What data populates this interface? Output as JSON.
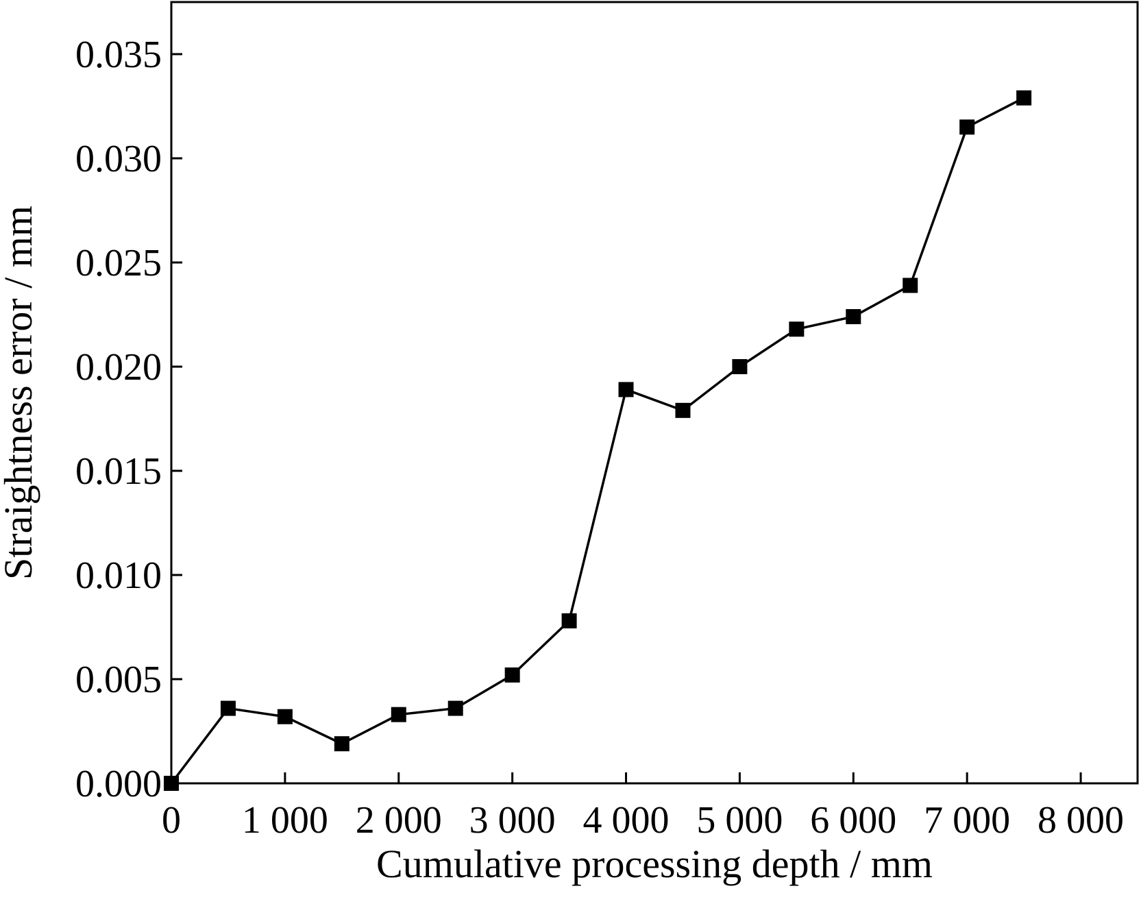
{
  "chart_data": {
    "type": "line",
    "title": "",
    "xlabel": "Cumulative processing depth / mm",
    "ylabel": "Straightness error / mm",
    "xlim": [
      0,
      8500
    ],
    "ylim": [
      0,
      0.0375
    ],
    "x_ticks": [
      0,
      1000,
      2000,
      3000,
      4000,
      5000,
      6000,
      7000,
      8000
    ],
    "x_tick_labels": [
      "0",
      "1 000",
      "2 000",
      "3 000",
      "4 000",
      "5 000",
      "6 000",
      "7 000",
      "8 000"
    ],
    "y_ticks": [
      0,
      0.005,
      0.01,
      0.015,
      0.02,
      0.025,
      0.03,
      0.035
    ],
    "y_tick_labels": [
      "0.000",
      "0.005",
      "0.010",
      "0.015",
      "0.020",
      "0.025",
      "0.030",
      "0.035"
    ],
    "grid": false,
    "marker": "square",
    "line_color": "#000000",
    "marker_color": "#000000",
    "series": [
      {
        "x": [
          0,
          500,
          1000,
          1500,
          2000,
          2500,
          3000,
          3500,
          4000,
          4500,
          5000,
          5500,
          6000,
          6500,
          7000,
          7500
        ],
        "y": [
          0.0,
          0.0036,
          0.0032,
          0.0019,
          0.0033,
          0.0036,
          0.0052,
          0.0078,
          0.0189,
          0.0179,
          0.02,
          0.0218,
          0.0224,
          0.0239,
          0.0315,
          0.0329
        ]
      }
    ]
  }
}
